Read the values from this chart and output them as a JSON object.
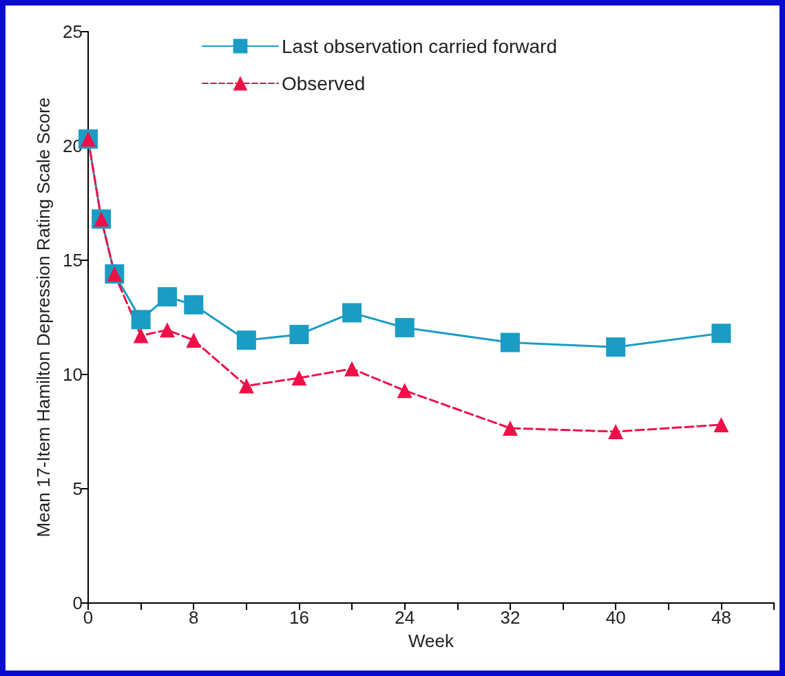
{
  "chart_data": {
    "type": "line",
    "xlabel": "Week",
    "ylabel": "Mean 17-Item Hamilton Depression Rating Scale Score",
    "x": [
      0,
      1,
      2,
      4,
      6,
      8,
      12,
      16,
      20,
      24,
      32,
      40,
      48
    ],
    "series": [
      {
        "name": "Last observation carried forward",
        "color": "#1a9cc4",
        "marker": "square",
        "line_style": "solid",
        "values": [
          20.3,
          16.8,
          14.4,
          12.4,
          13.4,
          13.05,
          11.5,
          11.75,
          12.7,
          12.05,
          11.4,
          11.2,
          11.8
        ]
      },
      {
        "name": "Observed",
        "color": "#ee1148",
        "marker": "triangle",
        "line_style": "dashed",
        "values": [
          20.3,
          16.8,
          14.4,
          11.7,
          11.95,
          11.5,
          9.5,
          9.85,
          10.25,
          9.3,
          7.65,
          7.5,
          7.8
        ]
      }
    ],
    "xlim": [
      0,
      52
    ],
    "xticks": [
      0,
      {
        "value": 4,
        "label": null
      },
      8,
      {
        "value": 12,
        "label": null
      },
      16,
      {
        "value": 20,
        "label": null
      },
      24,
      {
        "value": 28,
        "label": null
      },
      32,
      {
        "value": 36,
        "label": null
      },
      40,
      {
        "value": 44,
        "label": null
      },
      48,
      {
        "value": 52,
        "label": null
      }
    ],
    "ylim": [
      0,
      25
    ],
    "yticks": [
      0,
      5,
      10,
      15,
      20,
      25
    ],
    "grid": false,
    "legend": "top"
  }
}
